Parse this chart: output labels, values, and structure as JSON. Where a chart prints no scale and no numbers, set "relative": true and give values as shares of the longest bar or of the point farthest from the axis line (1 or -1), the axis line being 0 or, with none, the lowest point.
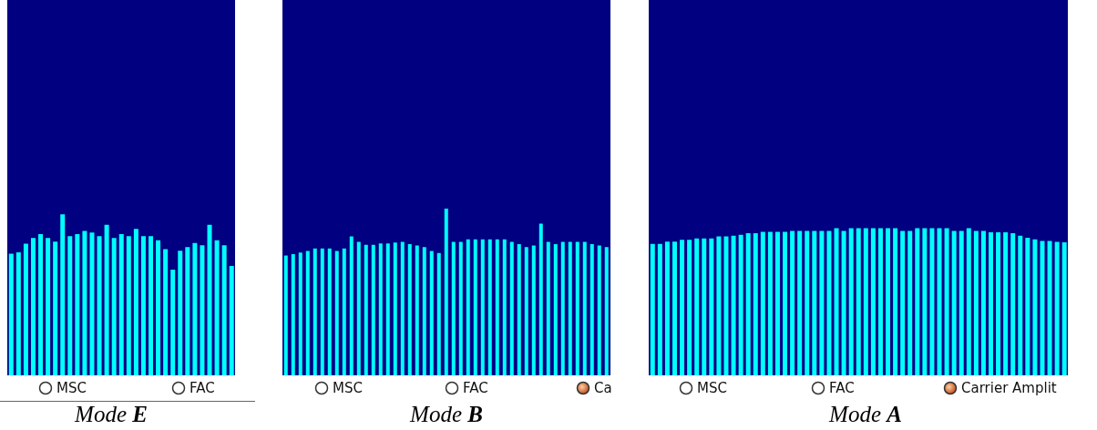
{
  "chart_data": [
    {
      "type": "bar",
      "title": "Mode E",
      "relative": true,
      "color": "#00ffff",
      "annotations": [
        "MSC",
        "FAC"
      ],
      "categories": [
        null,
        null,
        null,
        null,
        null,
        null,
        null,
        null,
        null,
        null,
        null,
        null,
        null,
        null,
        null,
        null,
        null,
        null,
        null,
        null,
        null,
        null,
        null,
        null,
        null,
        null,
        null,
        null,
        null,
        null,
        null
      ],
      "values": [
        0.755,
        0.764,
        0.817,
        0.853,
        0.877,
        0.853,
        0.83,
        1,
        0.864,
        0.877,
        0.896,
        0.887,
        0.864,
        0.934,
        0.853,
        0.877,
        0.864,
        0.909,
        0.864,
        0.864,
        0.839,
        0.783,
        0.656,
        0.774,
        0.796,
        0.821,
        0.808,
        0.934,
        0.839,
        0.808,
        0.679
      ]
    },
    {
      "type": "bar",
      "title": "Mode B",
      "relative": true,
      "color": "#00ffff",
      "annotations": [
        "MSC",
        "FAC",
        "Ca"
      ],
      "categories": [
        null,
        null,
        null,
        null,
        null,
        null,
        null,
        null,
        null,
        null,
        null,
        null,
        null,
        null,
        null,
        null,
        null,
        null,
        null,
        null,
        null,
        null,
        null,
        null,
        null,
        null,
        null,
        null,
        null,
        null,
        null,
        null,
        null,
        null,
        null,
        null,
        null,
        null,
        null,
        null,
        null,
        null,
        null,
        null,
        null
      ],
      "values": [
        0.718,
        0.727,
        0.736,
        0.745,
        0.76,
        0.76,
        0.76,
        0.745,
        0.76,
        0.833,
        0.8,
        0.782,
        0.782,
        0.791,
        0.791,
        0.796,
        0.8,
        0.787,
        0.778,
        0.769,
        0.745,
        0.733,
        1,
        0.8,
        0.8,
        0.815,
        0.815,
        0.815,
        0.815,
        0.815,
        0.815,
        0.8,
        0.787,
        0.769,
        0.778,
        0.909,
        0.8,
        0.787,
        0.8,
        0.8,
        0.8,
        0.8,
        0.787,
        0.778,
        0.769
      ]
    },
    {
      "type": "bar",
      "title": "Mode A",
      "relative": true,
      "color": "#00ffff",
      "annotations": [
        "MSC",
        "FAC",
        "Carrier Amplit"
      ],
      "categories": [
        null,
        null,
        null,
        null,
        null,
        null,
        null,
        null,
        null,
        null,
        null,
        null,
        null,
        null,
        null,
        null,
        null,
        null,
        null,
        null,
        null,
        null,
        null,
        null,
        null,
        null,
        null,
        null,
        null,
        null,
        null,
        null,
        null,
        null,
        null,
        null,
        null,
        null,
        null,
        null,
        null,
        null,
        null,
        null,
        null,
        null,
        null,
        null,
        null,
        null,
        null,
        null,
        null,
        null,
        null,
        null,
        null
      ],
      "values": [
        0.893,
        0.893,
        0.909,
        0.909,
        0.92,
        0.92,
        0.93,
        0.93,
        0.93,
        0.944,
        0.944,
        0.949,
        0.955,
        0.965,
        0.965,
        0.975,
        0.975,
        0.975,
        0.975,
        0.981,
        0.981,
        0.981,
        0.981,
        0.981,
        0.981,
        1,
        0.981,
        1,
        1,
        1,
        1,
        1,
        1,
        1,
        0.981,
        0.981,
        1,
        1,
        1,
        1,
        1,
        0.981,
        0.981,
        1,
        0.981,
        0.981,
        0.971,
        0.971,
        0.971,
        0.965,
        0.949,
        0.934,
        0.924,
        0.913,
        0.913,
        0.907,
        0.903
      ]
    }
  ]
}
